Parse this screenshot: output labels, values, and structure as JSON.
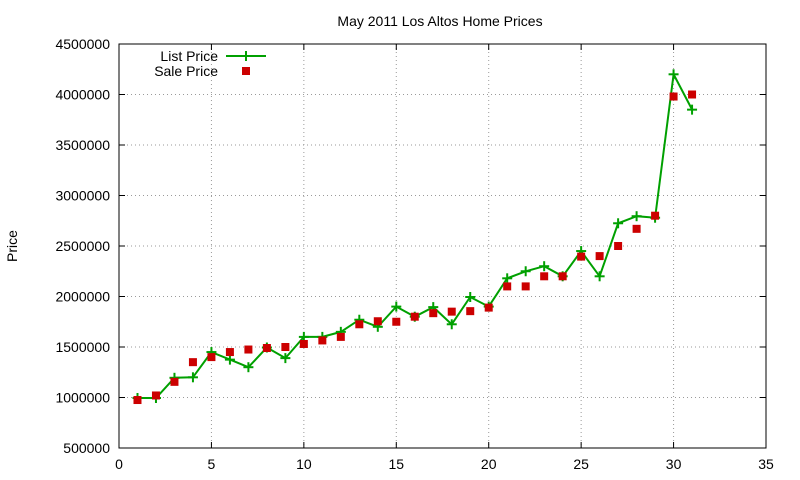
{
  "chart_data": {
    "type": "line",
    "title": "May 2011 Los Altos Home Prices",
    "xlabel": "",
    "ylabel": "Price",
    "xlim": [
      0,
      35
    ],
    "ylim": [
      500000,
      4500000
    ],
    "xticks": [
      0,
      5,
      10,
      15,
      20,
      25,
      30,
      35
    ],
    "yticks": [
      500000,
      1000000,
      1500000,
      2000000,
      2500000,
      3000000,
      3500000,
      4000000,
      4500000
    ],
    "grid": true,
    "legend_position": "top-left",
    "series": [
      {
        "name": "List Price",
        "style": "line-with-plus-markers",
        "color": "#00a000",
        "x": [
          1,
          2,
          3,
          4,
          5,
          6,
          7,
          8,
          9,
          10,
          11,
          12,
          13,
          14,
          15,
          16,
          17,
          18,
          19,
          20,
          21,
          22,
          23,
          24,
          25,
          26,
          27,
          28,
          29,
          30,
          31
        ],
        "values": [
          995000,
          995000,
          1195000,
          1200000,
          1450000,
          1375000,
          1300000,
          1495000,
          1390000,
          1600000,
          1600000,
          1650000,
          1770000,
          1700000,
          1900000,
          1800000,
          1895000,
          1725000,
          1995000,
          1900000,
          2180000,
          2250000,
          2300000,
          2200000,
          2450000,
          2200000,
          2725000,
          2795000,
          2780000,
          4200000,
          3850000
        ]
      },
      {
        "name": "Sale Price",
        "style": "square-markers",
        "color": "#cc0000",
        "x": [
          1,
          2,
          3,
          4,
          5,
          6,
          7,
          8,
          9,
          10,
          11,
          12,
          13,
          14,
          15,
          16,
          17,
          18,
          19,
          20,
          21,
          22,
          23,
          24,
          25,
          26,
          27,
          28,
          29,
          30,
          31
        ],
        "values": [
          975000,
          1020000,
          1155000,
          1350000,
          1400000,
          1450000,
          1475000,
          1490000,
          1500000,
          1530000,
          1565000,
          1600000,
          1725000,
          1755000,
          1750000,
          1800000,
          1835000,
          1850000,
          1855000,
          1890000,
          2100000,
          2100000,
          2200000,
          2200000,
          2395000,
          2400000,
          2500000,
          2670000,
          2800000,
          3980000,
          4000000
        ]
      }
    ]
  }
}
